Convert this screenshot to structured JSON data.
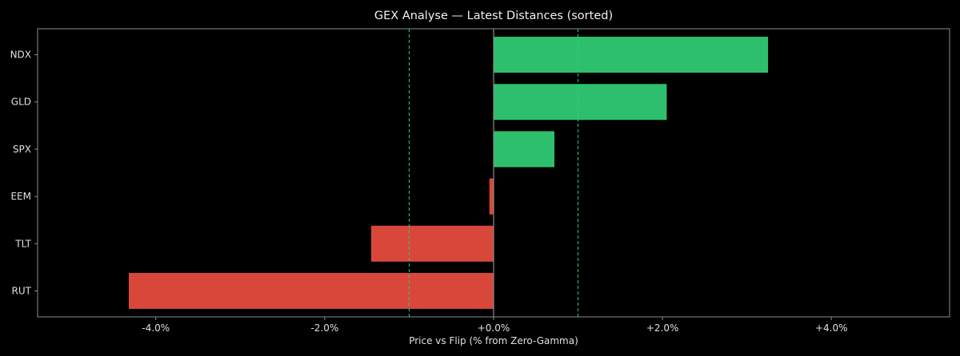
{
  "chart_data": {
    "type": "bar",
    "orientation": "horizontal",
    "title": "GEX Analyse — Latest Distances (sorted)",
    "xlabel": "Price vs Flip (% from Zero-Gamma)",
    "ylabel": "",
    "categories": [
      "NDX",
      "GLD",
      "SPX",
      "EEM",
      "TLT",
      "RUT"
    ],
    "values": [
      3.25,
      2.05,
      0.72,
      -0.05,
      -1.45,
      -4.32
    ],
    "xlim": [
      -5.4,
      5.4
    ],
    "xticks": [
      -4,
      -2,
      0,
      2,
      4
    ],
    "xtick_labels": [
      "-4.0%",
      "-2.0%",
      "+0.0%",
      "+2.0%",
      "+4.0%"
    ],
    "reference_lines": [
      -1.0,
      1.0
    ],
    "zero_line": 0,
    "grid": false,
    "colors": {
      "positive": "#2ebf6e",
      "negative": "#d9473a",
      "reference": "#25d07f",
      "zero": "#8c8c8c",
      "frame": "#8c8c8c",
      "background": "#000000"
    }
  }
}
